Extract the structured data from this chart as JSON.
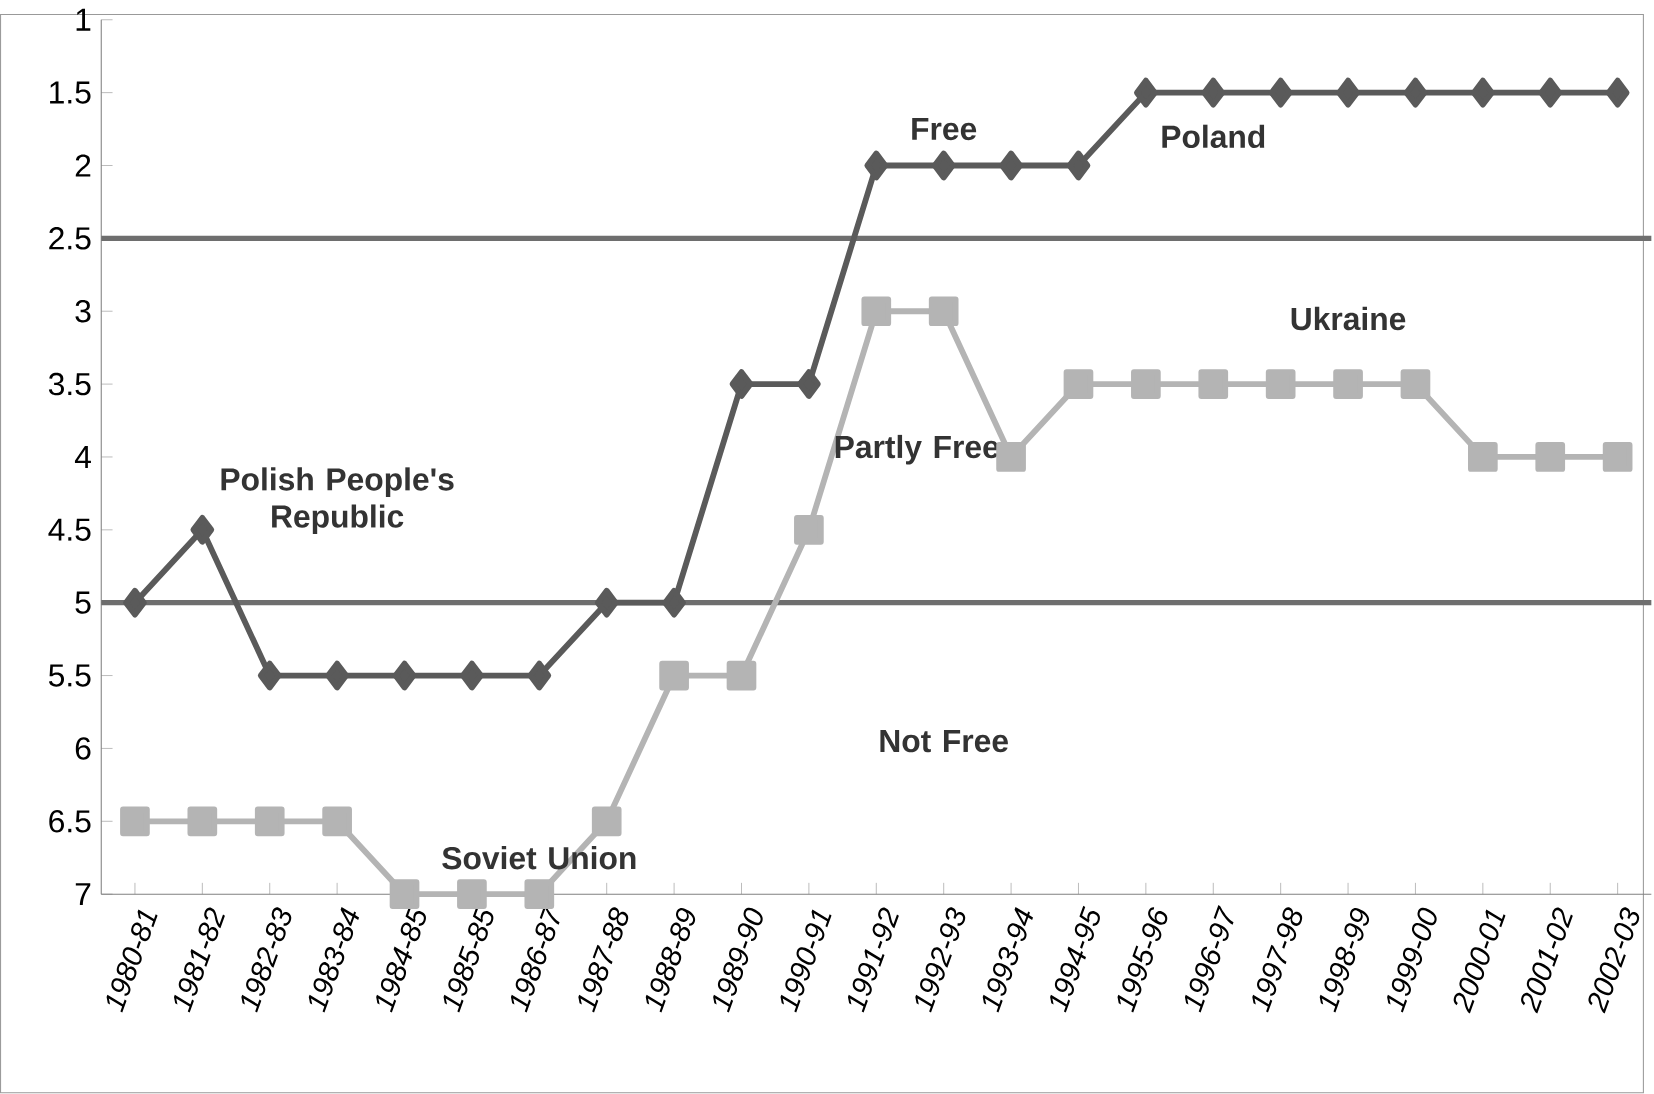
{
  "chart_data": {
    "type": "line",
    "categories": [
      "1980-81",
      "1981-82",
      "1982-83",
      "1983-84",
      "1984-85",
      "1985-85",
      "1986-87",
      "1987-88",
      "1988-89",
      "1989-90",
      "1990-91",
      "1991-92",
      "1992-93",
      "1993-94",
      "1994-95",
      "1995-96",
      "1996-97",
      "1997-98",
      "1998-99",
      "1999-00",
      "2000-01",
      "2001-02",
      "2002-03"
    ],
    "series": [
      {
        "color": "#5a5a5a",
        "marker": "diamond",
        "values": [
          5,
          4.5,
          5.5,
          5.5,
          5.5,
          5.5,
          5.5,
          5,
          5,
          3.5,
          3.5,
          2,
          2,
          2,
          2,
          1.5,
          1.5,
          1.5,
          1.5,
          1.5,
          1.5,
          1.5,
          1.5
        ]
      },
      {
        "color": "#b4b4b4",
        "marker": "square",
        "values": [
          6.5,
          6.5,
          6.5,
          6.5,
          7,
          7,
          7,
          6.5,
          5.5,
          5.5,
          4.5,
          3,
          3,
          4,
          3.5,
          3.5,
          3.5,
          3.5,
          3.5,
          3.5,
          4,
          4,
          4
        ]
      }
    ],
    "ylim": [
      7,
      1
    ],
    "yticks": [
      1,
      1.5,
      2,
      2.5,
      3,
      3.5,
      4,
      4.5,
      5,
      5.5,
      6,
      6.5,
      7
    ],
    "grid": false,
    "ref_lines": [
      {
        "axis": "y",
        "value": 2.5,
        "color": "#6e6e6e"
      },
      {
        "axis": "y",
        "value": 5,
        "color": "#6e6e6e"
      }
    ],
    "annotations": [
      "Free",
      "Poland",
      "Ukraine",
      "Polish People's Republic",
      "Partly Free",
      "Not Free",
      "Soviet Union"
    ]
  }
}
